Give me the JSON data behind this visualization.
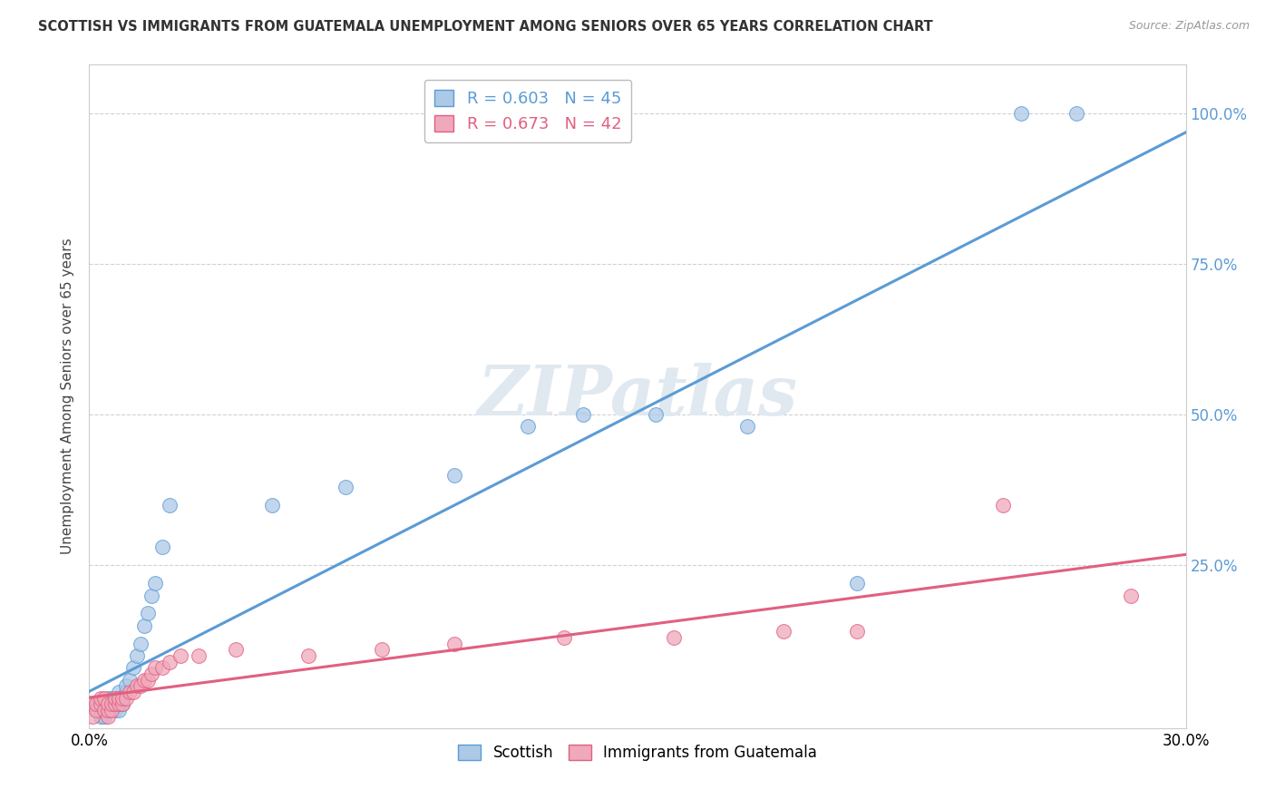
{
  "title": "SCOTTISH VS IMMIGRANTS FROM GUATEMALA UNEMPLOYMENT AMONG SENIORS OVER 65 YEARS CORRELATION CHART",
  "source": "Source: ZipAtlas.com",
  "ylabel": "Unemployment Among Seniors over 65 years",
  "xlim": [
    0.0,
    0.3
  ],
  "ylim": [
    -0.02,
    1.08
  ],
  "x_ticks": [
    0.0,
    0.3
  ],
  "x_tick_labels": [
    "0.0%",
    "30.0%"
  ],
  "y_ticks": [
    0.25,
    0.5,
    0.75,
    1.0
  ],
  "y_tick_labels": [
    "25.0%",
    "50.0%",
    "75.0%",
    "100.0%"
  ],
  "scottish_R": 0.603,
  "scottish_N": 45,
  "guatemalan_R": 0.673,
  "guatemalan_N": 42,
  "scottish_color": "#adc9e8",
  "scottish_line_color": "#5b9bd5",
  "guatemalan_color": "#f0a8bb",
  "guatemalan_line_color": "#e06080",
  "background_color": "#ffffff",
  "grid_color": "#cccccc",
  "watermark": "ZIPatlas",
  "scottish_x": [
    0.001,
    0.002,
    0.002,
    0.003,
    0.003,
    0.003,
    0.004,
    0.004,
    0.004,
    0.005,
    0.005,
    0.005,
    0.006,
    0.006,
    0.006,
    0.007,
    0.007,
    0.007,
    0.008,
    0.008,
    0.008,
    0.009,
    0.009,
    0.01,
    0.01,
    0.011,
    0.012,
    0.013,
    0.014,
    0.015,
    0.016,
    0.017,
    0.018,
    0.02,
    0.022,
    0.05,
    0.07,
    0.1,
    0.12,
    0.135,
    0.155,
    0.18,
    0.21,
    0.255,
    0.27
  ],
  "scottish_y": [
    0.02,
    0.01,
    0.02,
    0.0,
    0.01,
    0.02,
    0.0,
    0.01,
    0.02,
    0.01,
    0.02,
    0.03,
    0.01,
    0.02,
    0.03,
    0.01,
    0.02,
    0.03,
    0.01,
    0.02,
    0.04,
    0.02,
    0.03,
    0.04,
    0.05,
    0.06,
    0.08,
    0.1,
    0.12,
    0.15,
    0.17,
    0.2,
    0.22,
    0.28,
    0.35,
    0.35,
    0.38,
    0.4,
    0.48,
    0.5,
    0.5,
    0.48,
    0.22,
    1.0,
    1.0
  ],
  "guatemalan_x": [
    0.001,
    0.001,
    0.002,
    0.002,
    0.003,
    0.003,
    0.004,
    0.004,
    0.005,
    0.005,
    0.005,
    0.006,
    0.006,
    0.007,
    0.007,
    0.008,
    0.008,
    0.009,
    0.009,
    0.01,
    0.011,
    0.012,
    0.013,
    0.014,
    0.015,
    0.016,
    0.017,
    0.018,
    0.02,
    0.022,
    0.025,
    0.03,
    0.04,
    0.06,
    0.08,
    0.1,
    0.13,
    0.16,
    0.19,
    0.21,
    0.25,
    0.285
  ],
  "guatemalan_y": [
    0.0,
    0.02,
    0.01,
    0.02,
    0.02,
    0.03,
    0.01,
    0.03,
    0.0,
    0.01,
    0.02,
    0.01,
    0.02,
    0.02,
    0.03,
    0.02,
    0.03,
    0.02,
    0.03,
    0.03,
    0.04,
    0.04,
    0.05,
    0.05,
    0.06,
    0.06,
    0.07,
    0.08,
    0.08,
    0.09,
    0.1,
    0.1,
    0.11,
    0.1,
    0.11,
    0.12,
    0.13,
    0.13,
    0.14,
    0.14,
    0.35,
    0.2
  ]
}
